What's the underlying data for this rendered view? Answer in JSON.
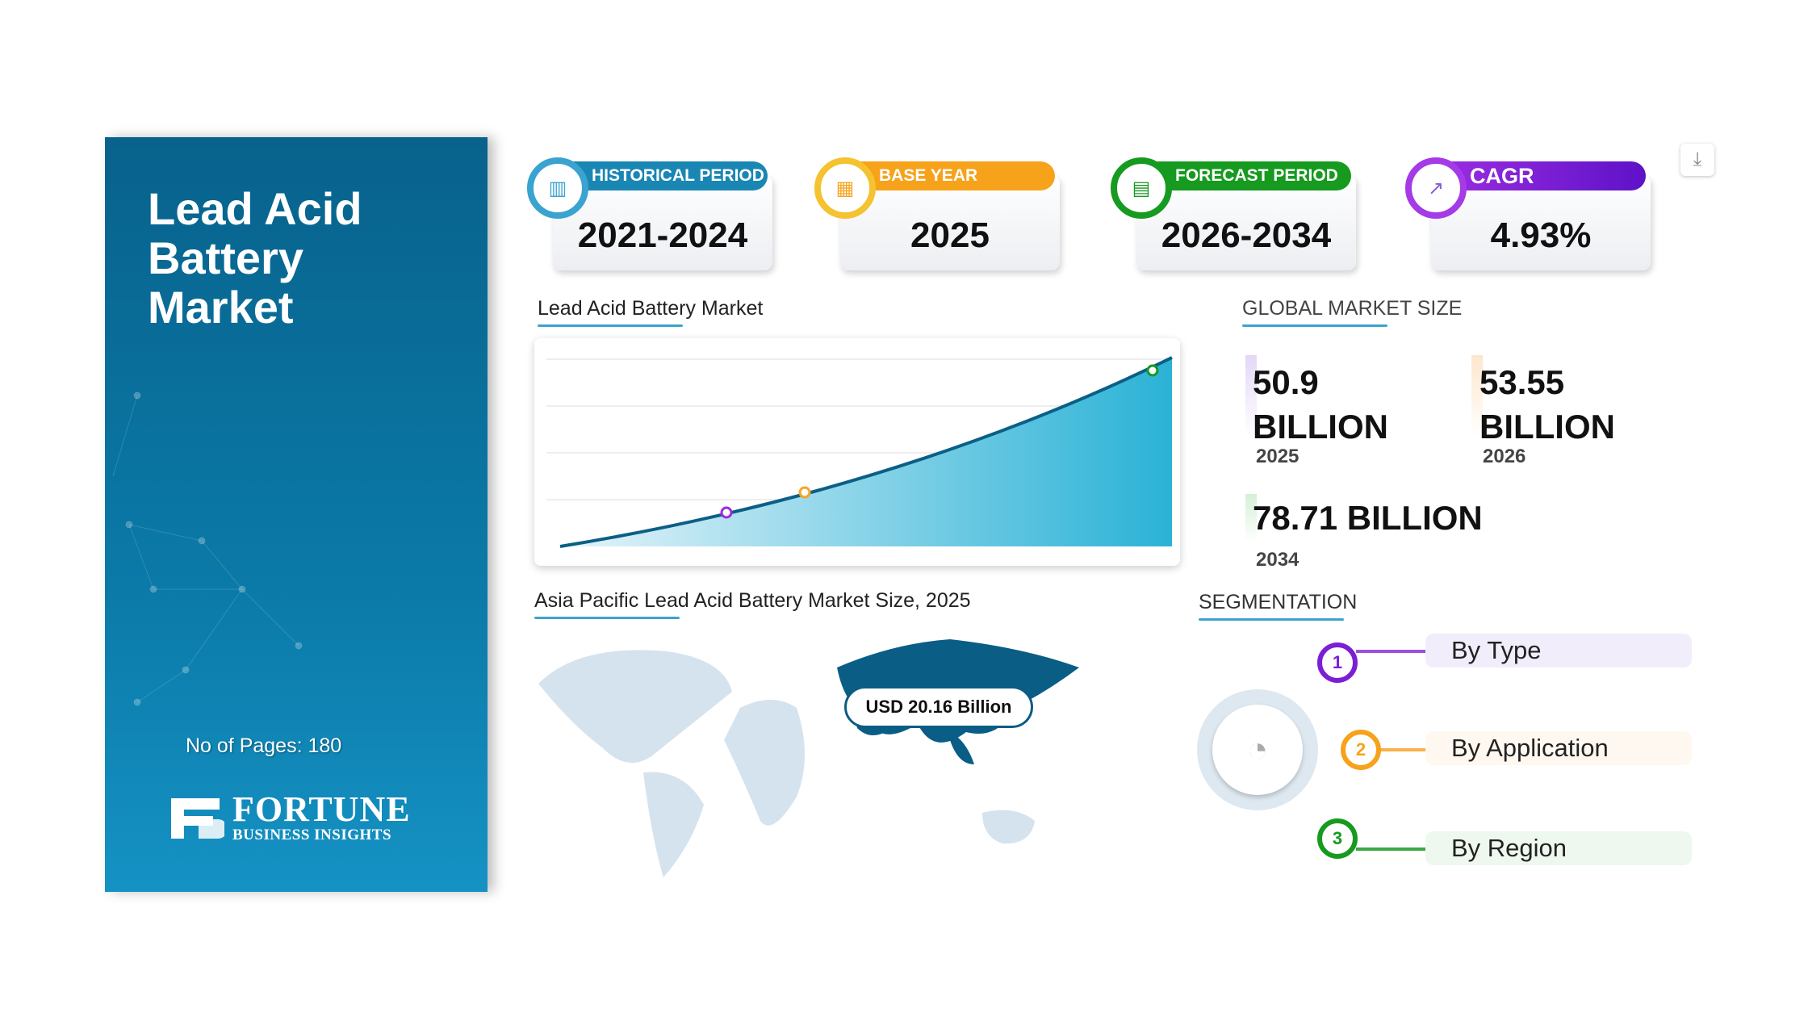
{
  "panel": {
    "title": "Lead Acid Battery Market",
    "pages": "No of Pages: 180",
    "logo_main": "FORTUNE",
    "logo_sub": "BUSINESS INSIGHTS"
  },
  "cards": [
    {
      "label": "HISTORICAL PERIOD",
      "value": "2021-2024",
      "color": "#1a86b3",
      "icon": "bar-chart-icon"
    },
    {
      "label": "BASE YEAR",
      "value": "2025",
      "color": "#f7a21b",
      "icon": "calendar-icon"
    },
    {
      "label": "FORECAST PERIOD",
      "value": "2026-2034",
      "color": "#169a1f",
      "icon": "forecast-chart-icon"
    },
    {
      "label": "CAGR",
      "value": "4.93%",
      "color": "#7b1fd6",
      "icon": "growth-chart-icon"
    }
  ],
  "chart": {
    "label": "Lead Acid Battery Market"
  },
  "market": {
    "label": "GLOBAL MARKET SIZE",
    "items": [
      {
        "value": "50.9",
        "unit": "BILLION",
        "year": "2025",
        "color": "#e4d7f7"
      },
      {
        "value": "53.55",
        "unit": "BILLION",
        "year": "2026",
        "color": "#fde6cc"
      },
      {
        "value": "78.71 BILLION",
        "year": "2034",
        "color": "#d4f0d6"
      }
    ]
  },
  "map": {
    "label": "Asia Pacific Lead Acid Battery Market Size, 2025",
    "callout": "USD 20.16 Billion"
  },
  "segmentation": {
    "label": "SEGMENTATION",
    "items": [
      {
        "num": "1",
        "label": "By Type",
        "color": "#7b1fd6",
        "bg": "#f1edfb"
      },
      {
        "num": "2",
        "label": "By Application",
        "color": "#f7a21b",
        "bg": "#fff8f0"
      },
      {
        "num": "3",
        "label": "By Region",
        "color": "#169a1f",
        "bg": "#eef8ee"
      }
    ]
  }
}
